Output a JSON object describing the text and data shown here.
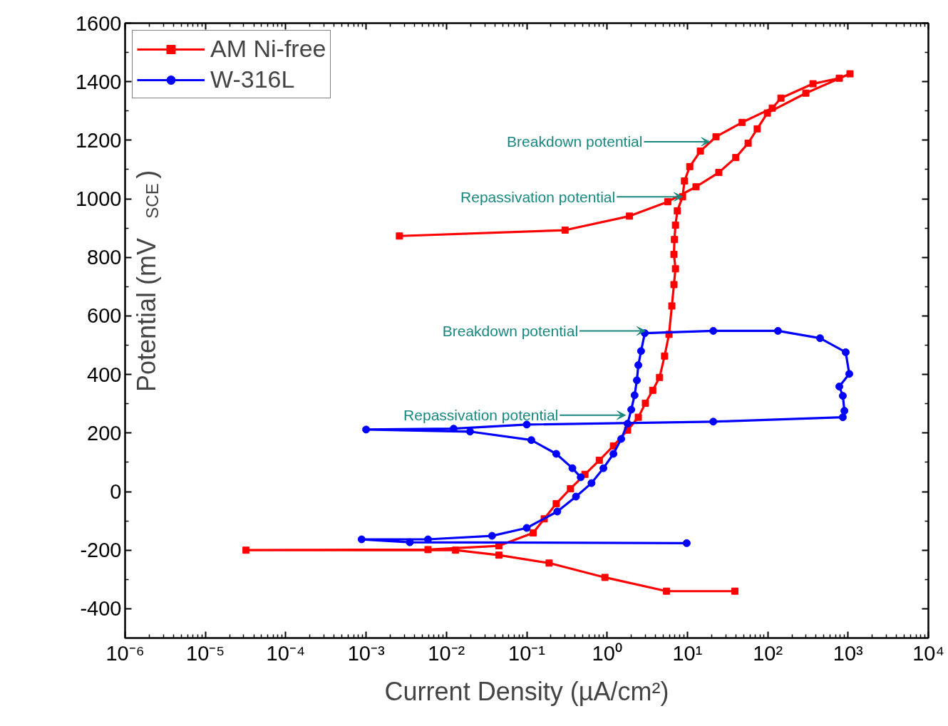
{
  "chart_data": {
    "type": "line",
    "xlabel": "Current Density (µA/cm²)",
    "ylabel": "Potential (mV$_{SCE}$)",
    "log": "x",
    "xlim": [
      1e-06,
      10000
    ],
    "ylim": [
      -500,
      1600
    ],
    "xticks": [
      {
        "value": 1e-06,
        "label": "10⁻⁶"
      },
      {
        "value": 1e-05,
        "label": "10⁻⁵"
      },
      {
        "value": 0.0001,
        "label": "10⁻⁴"
      },
      {
        "value": 0.001,
        "label": "10⁻³"
      },
      {
        "value": 0.01,
        "label": "10⁻²"
      },
      {
        "value": 0.1,
        "label": "10⁻¹"
      },
      {
        "value": 1,
        "label": "10⁰"
      },
      {
        "value": 10,
        "label": "10¹"
      },
      {
        "value": 100,
        "label": "10²"
      },
      {
        "value": 1000,
        "label": "10³"
      },
      {
        "value": 10000,
        "label": "10⁴"
      }
    ],
    "yticks": [
      -400,
      -200,
      0,
      200,
      400,
      600,
      800,
      1000,
      1200,
      1400,
      1600
    ],
    "grid": false,
    "legend": "top left",
    "line_style": "solid",
    "series": [
      {
        "name": "AM Ni-free",
        "color": "#ff0000",
        "marker": "square",
        "x": [
          39,
          5.5,
          0.94,
          0.19,
          0.045,
          0.013,
          3.2e-05,
          0.0059,
          0.045,
          0.12,
          0.165,
          0.233,
          0.35,
          0.53,
          0.8,
          1.2,
          1.8,
          2.45,
          3.0,
          3.7,
          4.5,
          5.2,
          5.9,
          6.4,
          6.8,
          7.1,
          6.8,
          6.9,
          7.1,
          7.5,
          8.7,
          9.2,
          10.7,
          14.5,
          22.7,
          48,
          114,
          146,
          366,
          778,
          1057,
          298,
          99,
          74,
          57,
          40,
          24.6,
          12.8,
          5.7,
          1.9,
          0.3,
          0.0026
        ],
        "values": [
          -340,
          -340,
          -293,
          -244,
          -217,
          -200,
          -200,
          -198,
          -185,
          -141,
          -93,
          -41,
          10,
          59,
          107,
          156,
          210,
          254,
          302,
          346,
          390,
          463,
          537,
          634,
          707,
          761,
          810,
          861,
          910,
          959,
          1007,
          1061,
          1110,
          1163,
          1212,
          1261,
          1310,
          1344,
          1393,
          1412,
          1427,
          1361,
          1293,
          1239,
          1190,
          1141,
          1090,
          1041,
          990,
          941,
          893,
          873
        ]
      },
      {
        "name": "W-316L",
        "color": "#0000ff",
        "marker": "circle",
        "x": [
          9.8,
          0.0035,
          0.00088,
          0.0059,
          0.037,
          0.1,
          0.24,
          0.41,
          0.64,
          0.9,
          1.2,
          1.5,
          1.8,
          2.0,
          2.2,
          2.35,
          2.45,
          2.65,
          2.95,
          21,
          134,
          448,
          935,
          1035,
          778,
          861,
          900,
          860,
          21,
          0.1,
          0.0123,
          0.001,
          0.0197,
          0.114,
          0.233,
          0.37,
          0.47
        ],
        "values": [
          -176,
          -173,
          -163,
          -163,
          -151,
          -124,
          -68,
          -17,
          29,
          80,
          129,
          180,
          232,
          280,
          329,
          380,
          432,
          480,
          541,
          549,
          549,
          524,
          476,
          402,
          359,
          327,
          276,
          254,
          239,
          229,
          215,
          212,
          205,
          176,
          129,
          80,
          49
        ]
      }
    ],
    "annotations": [
      {
        "text": "Breakdown potential",
        "x": 19,
        "y": 1195
      },
      {
        "text": "Repassivation potential",
        "x": 8.7,
        "y": 1007
      },
      {
        "text": "Breakdown potential",
        "x": 3,
        "y": 549
      },
      {
        "text": "Repassivation potential",
        "x": 1.7,
        "y": 261
      }
    ]
  }
}
